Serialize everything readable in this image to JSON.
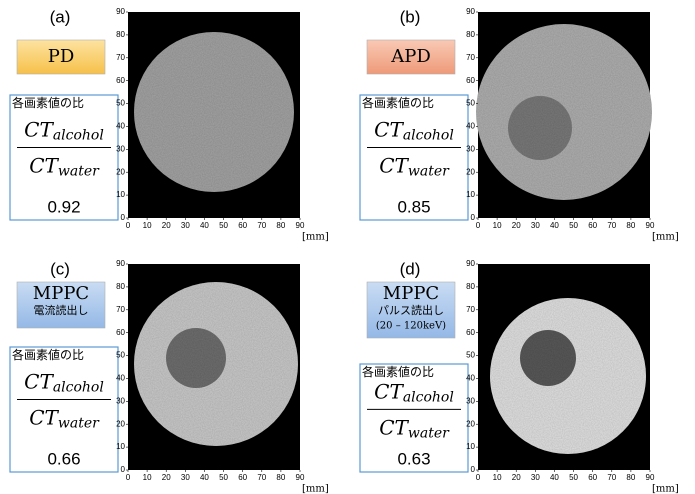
{
  "axis": {
    "ticks": [
      0,
      10,
      20,
      30,
      40,
      50,
      60,
      70,
      80,
      90
    ],
    "unit": "[mm]"
  },
  "panels": [
    {
      "label": "(a)",
      "method": [
        "PD"
      ],
      "caption": "各画素値の比",
      "numerator": {
        "base": "CT",
        "sub": "alcohol"
      },
      "denominator": {
        "base": "CT",
        "sub": "water"
      },
      "value": 0.92
    },
    {
      "label": "(b)",
      "method": [
        "APD"
      ],
      "caption": "各画素値の比",
      "numerator": {
        "base": "CT",
        "sub": "alcohol"
      },
      "denominator": {
        "base": "CT",
        "sub": "water"
      },
      "value": 0.85
    },
    {
      "label": "(c)",
      "method": [
        "MPPC",
        "電流読出し"
      ],
      "caption": "各画素値の比",
      "numerator": {
        "base": "CT",
        "sub": "alcohol"
      },
      "denominator": {
        "base": "CT",
        "sub": "water"
      },
      "value": 0.66
    },
    {
      "label": "(d)",
      "method": [
        "MPPC",
        "パルス読出し",
        "(20 – 120keV)"
      ],
      "caption": "各画素値の比",
      "numerator": {
        "base": "CT",
        "sub": "alcohol"
      },
      "denominator": {
        "base": "CT",
        "sub": "water"
      },
      "value": 0.63
    }
  ]
}
